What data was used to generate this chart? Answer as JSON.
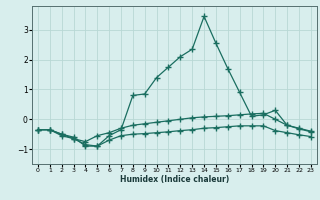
{
  "background_color": "#d8eeed",
  "grid_color": "#b8d8d5",
  "line_color": "#1a6e60",
  "xlabel": "Humidex (Indice chaleur)",
  "xlim": [
    -0.5,
    23.5
  ],
  "ylim": [
    -1.5,
    3.8
  ],
  "yticks": [
    -1,
    0,
    1,
    2,
    3
  ],
  "xticks": [
    0,
    1,
    2,
    3,
    4,
    5,
    6,
    7,
    8,
    9,
    10,
    11,
    12,
    13,
    14,
    15,
    16,
    17,
    18,
    19,
    20,
    21,
    22,
    23
  ],
  "line1_x": [
    0,
    1,
    2,
    3,
    4,
    5,
    6,
    7,
    8,
    9,
    10,
    11,
    12,
    13,
    14,
    15,
    16,
    17,
    18,
    19,
    20,
    21,
    22,
    23
  ],
  "line1_y": [
    -0.35,
    -0.35,
    -0.5,
    -0.6,
    -0.9,
    -0.9,
    -0.55,
    -0.35,
    0.8,
    0.85,
    1.4,
    1.75,
    2.1,
    2.35,
    3.45,
    2.55,
    1.7,
    0.9,
    0.1,
    0.15,
    0.3,
    -0.2,
    -0.3,
    -0.4
  ],
  "line2_x": [
    0,
    1,
    2,
    3,
    4,
    5,
    6,
    7,
    8,
    9,
    10,
    11,
    12,
    13,
    14,
    15,
    16,
    17,
    18,
    19,
    20,
    21,
    22,
    23
  ],
  "line2_y": [
    -0.35,
    -0.35,
    -0.5,
    -0.65,
    -0.75,
    -0.55,
    -0.45,
    -0.3,
    -0.2,
    -0.15,
    -0.1,
    -0.05,
    0.0,
    0.05,
    0.08,
    0.1,
    0.12,
    0.15,
    0.18,
    0.2,
    0.0,
    -0.2,
    -0.32,
    -0.42
  ],
  "line3_x": [
    0,
    1,
    2,
    3,
    4,
    5,
    6,
    7,
    8,
    9,
    10,
    11,
    12,
    13,
    14,
    15,
    16,
    17,
    18,
    19,
    20,
    21,
    22,
    23
  ],
  "line3_y": [
    -0.35,
    -0.35,
    -0.55,
    -0.65,
    -0.85,
    -0.9,
    -0.7,
    -0.55,
    -0.5,
    -0.48,
    -0.45,
    -0.42,
    -0.38,
    -0.35,
    -0.3,
    -0.28,
    -0.25,
    -0.22,
    -0.22,
    -0.22,
    -0.38,
    -0.45,
    -0.52,
    -0.58
  ]
}
